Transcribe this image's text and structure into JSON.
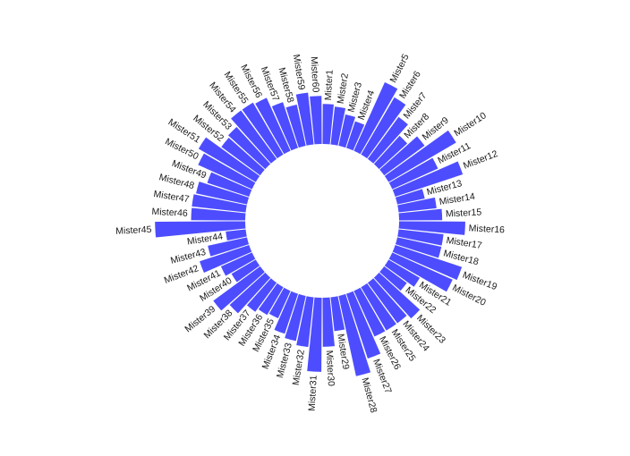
{
  "chart_data": {
    "type": "bar",
    "layout": "circular",
    "bar_color": "#4d4dff",
    "grid": false,
    "legend": "none",
    "title": "",
    "xlabel": "",
    "ylabel": "",
    "categories": [
      "Mister1",
      "Mister2",
      "Mister3",
      "Mister4",
      "Mister5",
      "Mister6",
      "Mister7",
      "Mister8",
      "Mister9",
      "Mister10",
      "Mister11",
      "Mister12",
      "Mister13",
      "Mister14",
      "Mister15",
      "Mister16",
      "Mister17",
      "Mister18",
      "Mister19",
      "Mister20",
      "Mister21",
      "Mister22",
      "Mister23",
      "Mister24",
      "Mister25",
      "Mister26",
      "Mister27",
      "Mister28",
      "Mister29",
      "Mister30",
      "Mister31",
      "Mister32",
      "Mister33",
      "Mister34",
      "Mister35",
      "Mister36",
      "Mister37",
      "Mister38",
      "Mister39",
      "Mister40",
      "Mister41",
      "Mister42",
      "Mister43",
      "Mister44",
      "Mister45",
      "Mister46",
      "Mister47",
      "Mister48",
      "Mister49",
      "Mister50",
      "Mister51",
      "Mister52",
      "Mister53",
      "Mister54",
      "Mister55",
      "Mister56",
      "Mister57",
      "Mister58",
      "Mister59",
      "Mister60"
    ],
    "values": [
      40,
      38,
      32,
      28,
      75,
      66,
      52,
      38,
      50,
      78,
      50,
      71,
      28,
      38,
      43,
      66,
      45,
      45,
      70,
      66,
      36,
      28,
      55,
      50,
      50,
      50,
      68,
      82,
      34,
      49,
      74,
      50,
      46,
      42,
      30,
      32,
      36,
      48,
      58,
      28,
      34,
      52,
      40,
      20,
      90,
      54,
      54,
      52,
      44,
      59,
      66,
      48,
      50,
      60,
      60,
      58,
      48,
      42,
      52,
      48
    ]
  }
}
